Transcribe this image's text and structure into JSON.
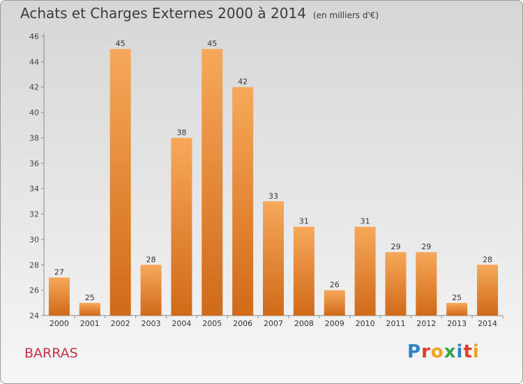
{
  "header": {
    "title": "Achats et Charges Externes 2000 à 2014",
    "unit": "(en milliers d'€)"
  },
  "footer": {
    "commune": "BARRAS",
    "logo": "Proxiti"
  },
  "colors": {
    "bar_light": "#f7a85a",
    "bar_dark": "#d06a18",
    "title": "#3c3c3c",
    "commune": "#c2324a",
    "logo_letters": [
      "#2b83c6",
      "#e23b2a",
      "#f0a21d",
      "#36a744",
      "#2b83c6",
      "#e23b2a",
      "#f0a21d"
    ]
  },
  "chart_data": {
    "type": "bar",
    "title": "Achats et Charges Externes 2000 à 2014",
    "subtitle": "(en milliers d'€)",
    "xlabel": "",
    "ylabel": "",
    "categories": [
      "2000",
      "2001",
      "2002",
      "2003",
      "2004",
      "2005",
      "2006",
      "2007",
      "2008",
      "2009",
      "2010",
      "2011",
      "2012",
      "2013",
      "2014"
    ],
    "values": [
      27,
      25,
      45,
      28,
      38,
      45,
      42,
      33,
      31,
      26,
      31,
      29,
      29,
      25,
      28
    ],
    "ylim": [
      24,
      46
    ],
    "yticks": [
      24,
      26,
      28,
      30,
      32,
      34,
      36,
      38,
      40,
      42,
      44,
      46
    ],
    "grid": false,
    "legend": "none",
    "data_labels": true
  }
}
